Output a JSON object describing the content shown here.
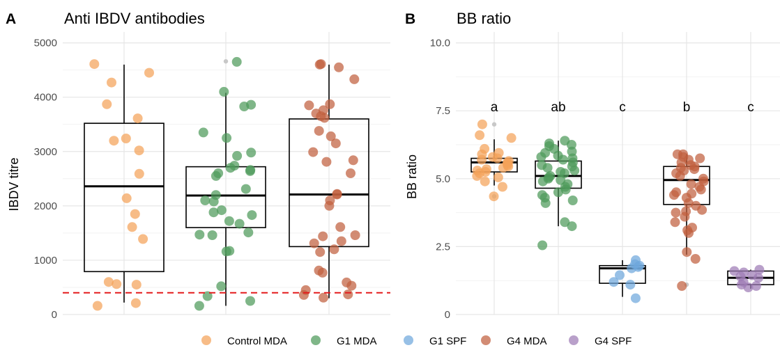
{
  "chart_data": [
    {
      "type": "box-jitter",
      "panel_letter": "A",
      "title": "Anti IBDV antibodies",
      "xlabel": "",
      "ylabel": "IBDV titre",
      "ylim": [
        0,
        5200
      ],
      "yticks": [
        0,
        1000,
        2000,
        3000,
        4000,
        5000
      ],
      "grid": true,
      "reference_line": {
        "y": 400,
        "color": "#e41a1c",
        "style": "dashed"
      },
      "groups": [
        {
          "name": "Control MDA",
          "color": "#f4a259",
          "box": {
            "q1": 790,
            "median": 2360,
            "q3": 3520,
            "whisker_low": 220,
            "whisker_high": 4600
          },
          "outliers": [],
          "points": [
            4610,
            4450,
            4270,
            3870,
            3610,
            3240,
            3200,
            3020,
            2590,
            2140,
            1850,
            1610,
            1390,
            600,
            560,
            550,
            210,
            160
          ]
        },
        {
          "name": "G1 MDA",
          "color": "#4e9a5a",
          "box": {
            "q1": 1600,
            "median": 2190,
            "q3": 2720,
            "whisker_low": 160,
            "whisker_high": 4080
          },
          "outliers": [
            4660
          ],
          "points": [
            4650,
            4100,
            3860,
            3830,
            3350,
            3250,
            2980,
            2920,
            2740,
            2700,
            2660,
            2640,
            2600,
            2550,
            2310,
            2200,
            2100,
            2080,
            1920,
            1880,
            1830,
            1720,
            1670,
            1510,
            1470,
            1460,
            1170,
            1160,
            520,
            340,
            250,
            160
          ]
        },
        {
          "name": "G4 MDA",
          "color": "#c0603f",
          "box": {
            "q1": 1250,
            "median": 2210,
            "q3": 3600,
            "whisker_low": 300,
            "whisker_high": 4600
          },
          "outliers": [],
          "points": [
            4610,
            4600,
            4550,
            4330,
            3870,
            3850,
            3760,
            3700,
            3650,
            3620,
            3380,
            3280,
            3150,
            2990,
            2840,
            2810,
            2600,
            2220,
            2210,
            2100,
            2000,
            1610,
            1460,
            1440,
            1350,
            1310,
            1200,
            1150,
            810,
            770,
            590,
            530,
            450,
            370,
            360,
            310
          ]
        }
      ]
    },
    {
      "type": "box-jitter",
      "panel_letter": "B",
      "title": "BB ratio",
      "xlabel": "",
      "ylabel": "BB ratio",
      "ylim": [
        0,
        10.4
      ],
      "yticks": [
        "0",
        "2.5",
        "5.0",
        "7.5",
        "10.0"
      ],
      "ytick_values": [
        0,
        2.5,
        5,
        7.5,
        10
      ],
      "grid": true,
      "groups": [
        {
          "name": "Control MDA",
          "color": "#f4a259",
          "letter": "a",
          "box": {
            "q1": 5.25,
            "median": 5.6,
            "q3": 5.75,
            "whisker_low": 4.75,
            "whisker_high": 6.45
          },
          "outliers": [
            7.0,
            4.35
          ],
          "points": [
            7.0,
            6.6,
            6.5,
            6.1,
            5.95,
            5.9,
            5.8,
            5.75,
            5.7,
            5.65,
            5.6,
            5.55,
            5.5,
            5.45,
            5.4,
            5.35,
            5.3,
            5.25,
            5.2,
            5.1,
            5.05,
            4.9,
            4.7,
            4.35
          ]
        },
        {
          "name": "G1 MDA",
          "color": "#4e9a5a",
          "letter": "ab",
          "box": {
            "q1": 4.65,
            "median": 5.1,
            "q3": 5.65,
            "whisker_low": 3.25,
            "whisker_high": 6.4
          },
          "outliers": [],
          "points": [
            6.4,
            6.3,
            6.25,
            6.2,
            6.1,
            6.0,
            5.95,
            5.85,
            5.8,
            5.75,
            5.7,
            5.6,
            5.5,
            5.45,
            5.4,
            5.3,
            5.25,
            5.2,
            5.1,
            5.05,
            5.0,
            4.95,
            4.9,
            4.8,
            4.7,
            4.6,
            4.5,
            4.4,
            4.3,
            4.2,
            4.1,
            3.4,
            3.25,
            2.55
          ]
        },
        {
          "name": "G1 SPF",
          "color": "#6fa8dc",
          "letter": "c",
          "box": {
            "q1": 1.15,
            "median": 1.7,
            "q3": 1.8,
            "whisker_low": 0.65,
            "whisker_high": 2.0
          },
          "outliers": [],
          "points": [
            2.0,
            1.85,
            1.8,
            1.75,
            1.7,
            1.45,
            1.2,
            1.1,
            0.6
          ]
        },
        {
          "name": "G4 MDA",
          "color": "#c0603f",
          "letter": "b",
          "box": {
            "q1": 4.05,
            "median": 4.95,
            "q3": 5.45,
            "whisker_low": 2.2,
            "whisker_high": 5.9
          },
          "outliers": [
            1.1
          ],
          "points": [
            5.9,
            5.9,
            5.8,
            5.75,
            5.7,
            5.6,
            5.5,
            5.45,
            5.4,
            5.35,
            5.3,
            5.2,
            5.1,
            5.0,
            4.9,
            4.8,
            4.7,
            4.6,
            4.5,
            4.45,
            4.4,
            4.3,
            4.1,
            4.0,
            3.85,
            3.8,
            3.75,
            3.6,
            3.4,
            3.2,
            3.1,
            3.0,
            2.3,
            2.05,
            1.05
          ]
        },
        {
          "name": "G4 SPF",
          "color": "#9e7bb5",
          "letter": "c",
          "box": {
            "q1": 1.1,
            "median": 1.35,
            "q3": 1.6,
            "whisker_low": 0.95,
            "whisker_high": 1.65
          },
          "outliers": [],
          "points": [
            1.65,
            1.6,
            1.55,
            1.45,
            1.4,
            1.35,
            1.2,
            1.1,
            1.05,
            1.0
          ]
        }
      ]
    }
  ],
  "legend": {
    "position": "bottom",
    "items": [
      {
        "label": "Control MDA",
        "color": "#f4a259"
      },
      {
        "label": "G1 MDA",
        "color": "#4e9a5a"
      },
      {
        "label": "G1 SPF",
        "color": "#6fa8dc"
      },
      {
        "label": "G4 MDA",
        "color": "#c0603f"
      },
      {
        "label": "G4 SPF",
        "color": "#9e7bb5"
      }
    ]
  }
}
